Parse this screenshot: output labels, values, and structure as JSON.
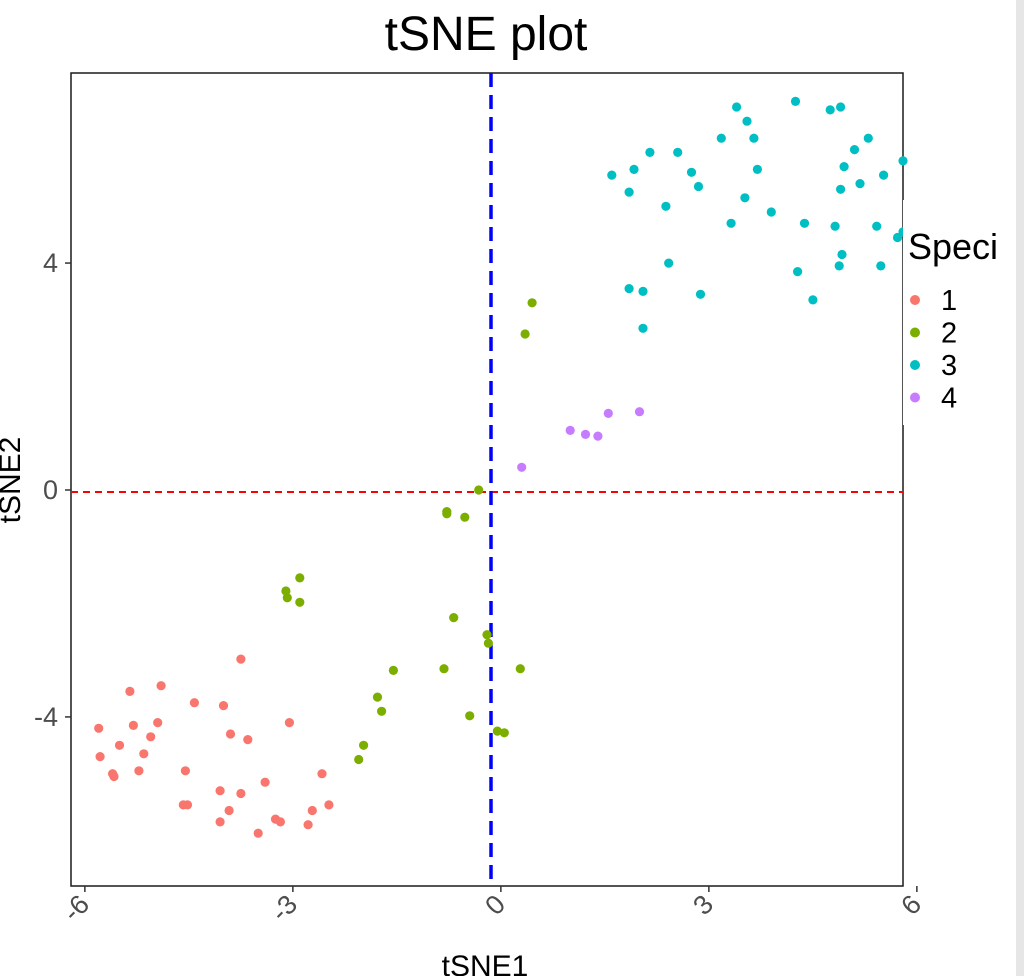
{
  "chart_data": {
    "type": "scatter",
    "title": "tSNE plot",
    "xlabel": "tSNE1",
    "ylabel": "tSNE2",
    "xlim": [
      -6.2,
      5.8
    ],
    "ylim": [
      -6.98,
      7.35
    ],
    "xticks": [
      -6,
      -3,
      0,
      3,
      6
    ],
    "yticks": [
      -4,
      0,
      4
    ],
    "xtick_labels": [
      "-6",
      "-3",
      "0",
      "3",
      "6"
    ],
    "ytick_labels": [
      "-4",
      "0",
      "4"
    ],
    "reference_lines": {
      "vertical": {
        "x": -0.02,
        "color": "#0000ff",
        "style": "dashed"
      },
      "horizontal": {
        "y": 0,
        "color": "#ff0000",
        "style": "dashed"
      }
    },
    "legend": {
      "title": "Speci",
      "placement": "right"
    },
    "grid": false,
    "series": [
      {
        "name": "1",
        "color": "#f8766d",
        "points": [
          [
            -5.8,
            -4.2
          ],
          [
            -5.78,
            -4.7
          ],
          [
            -5.6,
            -5.0
          ],
          [
            -5.58,
            -5.05
          ],
          [
            -5.5,
            -4.5
          ],
          [
            -5.35,
            -3.55
          ],
          [
            -5.3,
            -4.15
          ],
          [
            -5.22,
            -4.95
          ],
          [
            -5.15,
            -4.65
          ],
          [
            -5.05,
            -4.35
          ],
          [
            -4.95,
            -4.1
          ],
          [
            -4.9,
            -3.45
          ],
          [
            -4.58,
            -5.55
          ],
          [
            -4.55,
            -4.95
          ],
          [
            -4.52,
            -5.55
          ],
          [
            -4.42,
            -3.75
          ],
          [
            -4.05,
            -5.3
          ],
          [
            -4.05,
            -5.85
          ],
          [
            -4.0,
            -3.8
          ],
          [
            -3.92,
            -5.65
          ],
          [
            -3.9,
            -4.3
          ],
          [
            -3.75,
            -2.98
          ],
          [
            -3.75,
            -5.35
          ],
          [
            -3.65,
            -4.4
          ],
          [
            -3.5,
            -6.05
          ],
          [
            -3.4,
            -5.15
          ],
          [
            -3.25,
            -5.8
          ],
          [
            -3.18,
            -5.85
          ],
          [
            -3.05,
            -4.1
          ],
          [
            -2.78,
            -5.9
          ],
          [
            -2.72,
            -5.65
          ],
          [
            -2.58,
            -5.0
          ],
          [
            -2.48,
            -5.55
          ]
        ]
      },
      {
        "name": "2",
        "color": "#7cae00",
        "points": [
          [
            -3.1,
            -1.78
          ],
          [
            -3.08,
            -1.9
          ],
          [
            -2.9,
            -1.55
          ],
          [
            -2.9,
            -1.98
          ],
          [
            -2.05,
            -4.75
          ],
          [
            -1.98,
            -4.5
          ],
          [
            -1.78,
            -3.65
          ],
          [
            -1.72,
            -3.9
          ],
          [
            -1.55,
            -3.18
          ],
          [
            -0.82,
            -3.15
          ],
          [
            -0.78,
            -0.42
          ],
          [
            -0.78,
            -0.38
          ],
          [
            -0.68,
            -2.25
          ],
          [
            -0.52,
            -0.48
          ],
          [
            -0.45,
            -3.98
          ],
          [
            -0.32,
            0.0
          ],
          [
            -0.2,
            -2.55
          ],
          [
            -0.18,
            -2.7
          ],
          [
            -0.05,
            -4.25
          ],
          [
            0.05,
            -4.28
          ],
          [
            0.28,
            -3.15
          ],
          [
            0.35,
            2.75
          ],
          [
            0.45,
            3.3
          ]
        ]
      },
      {
        "name": "3",
        "color": "#00bfc4",
        "points": [
          [
            1.6,
            5.55
          ],
          [
            1.85,
            5.25
          ],
          [
            1.85,
            3.55
          ],
          [
            1.92,
            5.65
          ],
          [
            2.05,
            3.5
          ],
          [
            2.05,
            2.85
          ],
          [
            2.15,
            5.95
          ],
          [
            2.38,
            5.0
          ],
          [
            2.42,
            4.0
          ],
          [
            2.55,
            5.95
          ],
          [
            2.75,
            5.6
          ],
          [
            2.85,
            5.35
          ],
          [
            2.88,
            3.45
          ],
          [
            3.18,
            6.2
          ],
          [
            3.32,
            4.7
          ],
          [
            3.4,
            6.75
          ],
          [
            3.52,
            5.15
          ],
          [
            3.55,
            6.5
          ],
          [
            3.65,
            6.2
          ],
          [
            3.7,
            5.65
          ],
          [
            3.9,
            4.9
          ],
          [
            4.25,
            6.85
          ],
          [
            4.28,
            3.85
          ],
          [
            4.38,
            4.7
          ],
          [
            4.5,
            3.35
          ],
          [
            4.75,
            6.7
          ],
          [
            4.82,
            4.65
          ],
          [
            4.88,
            3.95
          ],
          [
            4.9,
            6.75
          ],
          [
            4.9,
            5.3
          ],
          [
            4.92,
            4.15
          ],
          [
            4.95,
            5.7
          ],
          [
            5.1,
            6.0
          ],
          [
            5.18,
            5.4
          ],
          [
            5.3,
            6.2
          ],
          [
            5.42,
            4.65
          ],
          [
            5.48,
            3.95
          ],
          [
            5.52,
            5.55
          ],
          [
            5.72,
            4.45
          ],
          [
            5.8,
            4.55
          ],
          [
            5.8,
            5.8
          ]
        ]
      },
      {
        "name": "4",
        "color": "#c77cff",
        "points": [
          [
            0.3,
            0.4
          ],
          [
            1.0,
            1.05
          ],
          [
            1.22,
            0.98
          ],
          [
            1.4,
            0.95
          ],
          [
            1.55,
            1.35
          ],
          [
            2.0,
            1.38
          ]
        ]
      }
    ]
  }
}
